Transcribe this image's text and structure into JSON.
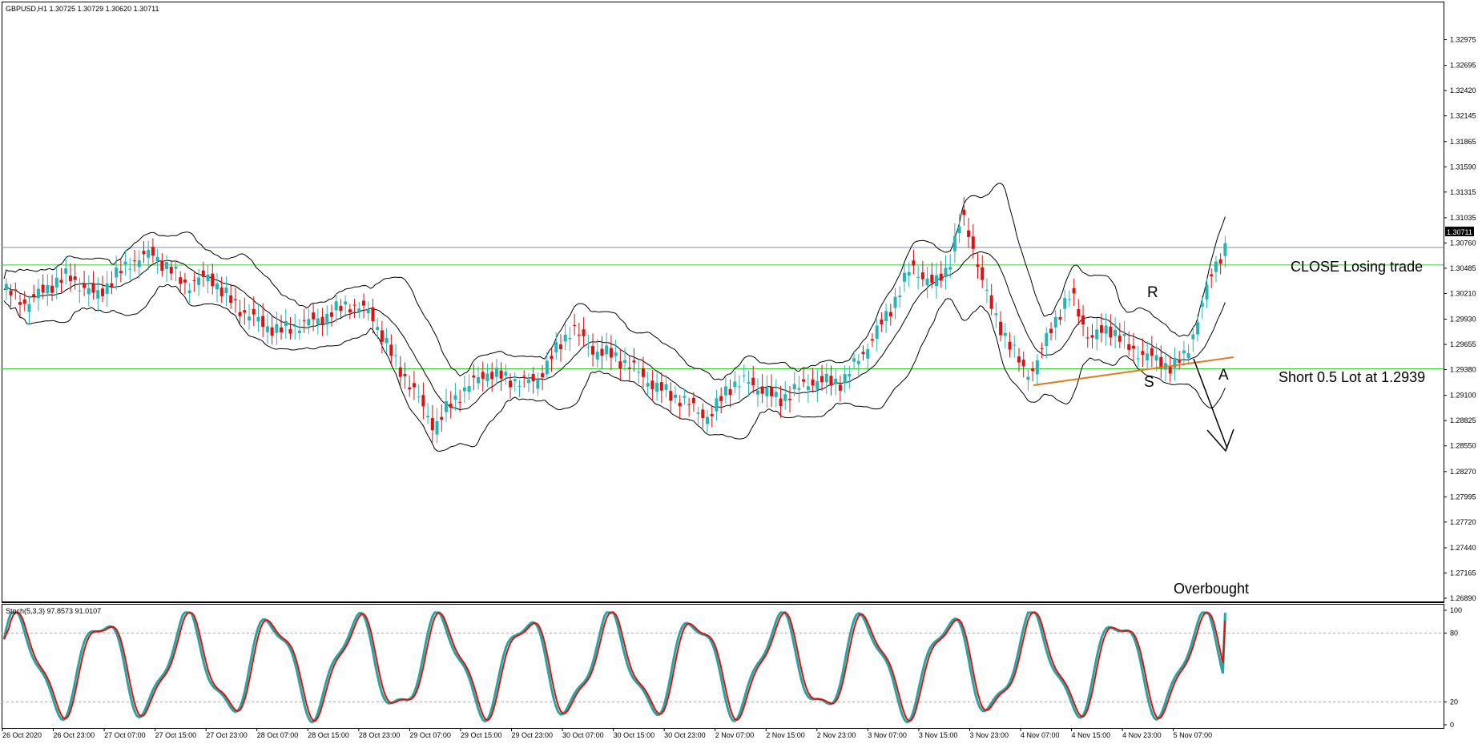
{
  "main_header": "GBPUSD,H1  1.30725 1.30729 1.30620 1.30711",
  "stoch_header": "Stoch(5,3,3) 97.8573 91.0107",
  "price_badge": "1.30711",
  "annotations": {
    "close": "CLOSE Losing trade",
    "short": "Short 0.5 Lot at 1.2939",
    "overbought": "Overbought",
    "r": "R",
    "s": "S",
    "a": "A"
  },
  "colors": {
    "bull": "#26b5b5",
    "bear": "#e01010",
    "bands": "#000000",
    "h_lines": "#33cc33",
    "price_line": "#7f8fa8",
    "trendline": "#e07a20",
    "stoch_main": "#26a6a0",
    "stoch_signal": "#e01010"
  },
  "chart_data": [
    {
      "type": "candlestick",
      "symbol": "GBPUSD",
      "timeframe": "H1",
      "ylim": [
        1.2689,
        1.3325
      ],
      "price_ticks": [
        "1.32975",
        "1.32695",
        "1.32420",
        "1.32145",
        "1.31865",
        "1.31590",
        "1.31315",
        "1.31035",
        "1.30760",
        "1.30485",
        "1.30210",
        "1.29930",
        "1.29655",
        "1.29380",
        "1.29100",
        "1.28825",
        "1.28550",
        "1.28270",
        "1.27995",
        "1.27720",
        "1.27440",
        "1.27165",
        "1.26890"
      ],
      "time_ticks": [
        "26 Oct 2020",
        "26 Oct 23:00",
        "27 Oct 07:00",
        "27 Oct 15:00",
        "27 Oct 23:00",
        "28 Oct 07:00",
        "28 Oct 15:00",
        "28 Oct 23:00",
        "29 Oct 07:00",
        "29 Oct 15:00",
        "29 Oct 23:00",
        "30 Oct 07:00",
        "30 Oct 15:00",
        "30 Oct 23:00",
        "2 Nov 07:00",
        "2 Nov 15:00",
        "2 Nov 23:00",
        "3 Nov 07:00",
        "3 Nov 15:00",
        "3 Nov 23:00",
        "4 Nov 07:00",
        "4 Nov 15:00",
        "4 Nov 23:00",
        "5 Nov 07:00"
      ],
      "horizontal_lines": [
        1.3052,
        1.2939
      ],
      "current_price": 1.30711,
      "bollinger_bands": "upper / middle / lower",
      "trendline": "support from 4 Nov 07:00 to 5 Nov 07:00"
    },
    {
      "type": "line",
      "indicator": "Stochastic",
      "params": "5,3,3",
      "ylim": [
        0,
        100
      ],
      "levels": [
        20,
        80
      ],
      "y_ticks": [
        "100",
        "80",
        "20",
        "0"
      ],
      "series": [
        {
          "name": "main",
          "last": 97.8573
        },
        {
          "name": "signal",
          "last": 91.0107
        }
      ]
    }
  ]
}
